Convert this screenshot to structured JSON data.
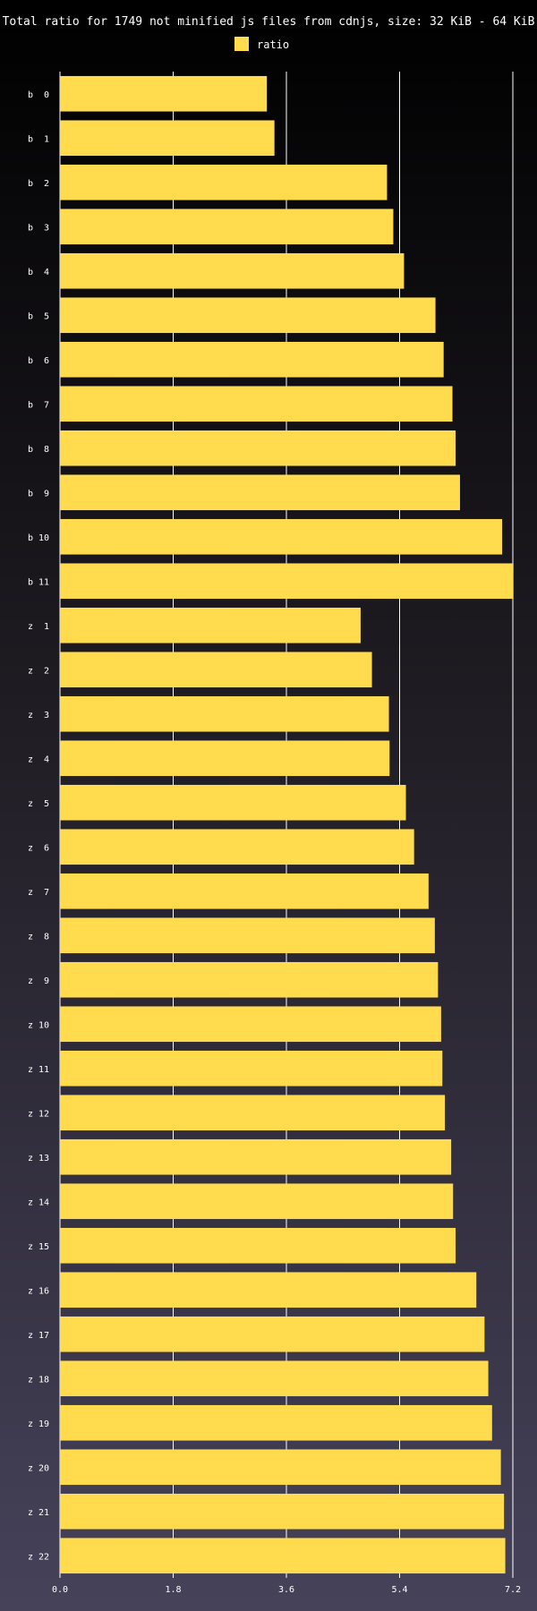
{
  "chart_data": {
    "type": "bar",
    "orientation": "horizontal",
    "title": "Total ratio for 1749 not minified js files from cdnjs, size: 32 KiB - 64 KiB",
    "legend": {
      "placement": "top-center",
      "entries": [
        {
          "name": "ratio",
          "color": "#ffdb4d"
        }
      ]
    },
    "xlim": [
      0,
      7.2
    ],
    "xticks": [
      {
        "value": 0,
        "label": "0.0"
      },
      {
        "value": 1.8,
        "label": "1.8"
      },
      {
        "value": 3.6,
        "label": "3.6"
      },
      {
        "value": 5.4,
        "label": "5.4"
      },
      {
        "value": 7.2,
        "label": "7.2"
      }
    ],
    "grid": true,
    "bar_color": "#ffdb4d",
    "categories": [
      "b  0",
      "b  1",
      "b  2",
      "b  3",
      "b  4",
      "b  5",
      "b  6",
      "b  7",
      "b  8",
      "b  9",
      "b 10",
      "b 11",
      "z  1",
      "z  2",
      "z  3",
      "z  4",
      "z  5",
      "z  6",
      "z  7",
      "z  8",
      "z  9",
      "z 10",
      "z 11",
      "z 12",
      "z 13",
      "z 14",
      "z 15",
      "z 16",
      "z 17",
      "z 18",
      "z 19",
      "z 20",
      "z 21",
      "z 22"
    ],
    "series": [
      {
        "name": "ratio",
        "values": [
          3.29,
          3.41,
          5.2,
          5.3,
          5.47,
          5.97,
          6.1,
          6.24,
          6.29,
          6.36,
          7.03,
          7.21,
          4.78,
          4.96,
          5.23,
          5.24,
          5.5,
          5.63,
          5.86,
          5.96,
          6.01,
          6.06,
          6.08,
          6.12,
          6.22,
          6.25,
          6.29,
          6.62,
          6.75,
          6.81,
          6.87,
          7.01,
          7.06,
          7.08
        ]
      }
    ]
  }
}
